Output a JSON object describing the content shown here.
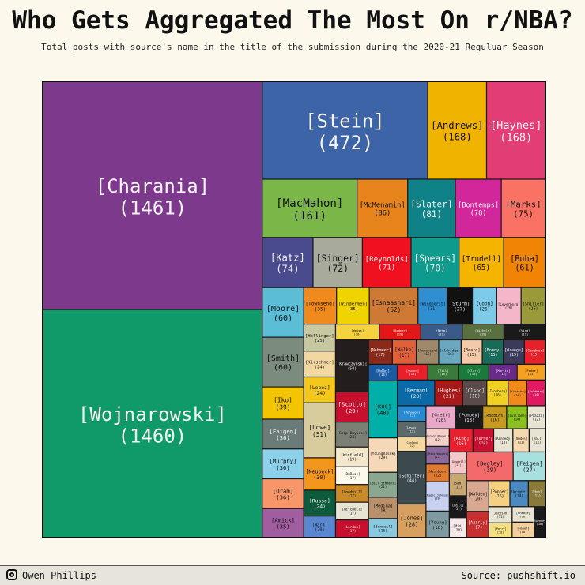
{
  "chart_data": {
    "type": "treemap",
    "title": "Who Gets Aggregated The Most On r/NBA?",
    "subtitle": "Total posts with source's name in the title of the submission during the 2020-21 Reguluar Season",
    "items": [
      {
        "name": "[Charania]",
        "value": 1461,
        "color": "#7d3a8c"
      },
      {
        "name": "[Wojnarowski]",
        "value": 1460,
        "color": "#109a6a"
      },
      {
        "name": "[Stein]",
        "value": 472,
        "color": "#3e64a8"
      },
      {
        "name": "[Andrews]",
        "value": 168,
        "color": "#f0b400"
      },
      {
        "name": "[Haynes]",
        "value": 168,
        "color": "#e23d74"
      },
      {
        "name": "[MacMahon]",
        "value": 161,
        "color": "#7ab648"
      },
      {
        "name": "[McMenamin]",
        "value": 86,
        "color": "#e8841c"
      },
      {
        "name": "[Slater]",
        "value": 81,
        "color": "#0f8288"
      },
      {
        "name": "[Bontemps]",
        "value": 78,
        "color": "#d1279a"
      },
      {
        "name": "[Marks]",
        "value": 75,
        "color": "#fa7264"
      },
      {
        "name": "[Katz]",
        "value": 74,
        "color": "#4a4a8e"
      },
      {
        "name": "[Singer]",
        "value": 72,
        "color": "#a8aa9c"
      },
      {
        "name": "[Reynolds]",
        "value": 71,
        "color": "#f11020"
      },
      {
        "name": "[Spears]",
        "value": 70,
        "color": "#0e9a8c"
      },
      {
        "name": "[Trudell]",
        "value": 65,
        "color": "#f4b400"
      },
      {
        "name": "[Buha]",
        "value": 61,
        "color": "#f18405"
      },
      {
        "name": "[Moore]",
        "value": 60,
        "color": "#5bbdd6"
      },
      {
        "name": "[Smith]",
        "value": 60,
        "color": "#7b8c7e"
      },
      {
        "name": "[Iko]",
        "value": 39,
        "color": "#f3c400"
      },
      {
        "name": "[Faigen]",
        "value": 36,
        "color": "#6b7b78"
      },
      {
        "name": "[Murphy]",
        "value": 36,
        "color": "#8dd0ea"
      },
      {
        "name": "[Oram]",
        "value": 36,
        "color": "#f8966a"
      },
      {
        "name": "[Amick]",
        "value": 35,
        "color": "#a05ea0"
      },
      {
        "name": "[Townsend]",
        "value": 35,
        "color": "#f08a1c"
      },
      {
        "name": "[Windermen]",
        "value": 35,
        "color": "#f0d400"
      },
      {
        "name": "[Esnaashari]",
        "value": 52,
        "color": "#cf7a34"
      },
      {
        "name": "[Windhorst]",
        "value": 31,
        "color": "#2f8fd0"
      },
      {
        "name": "[Sturm]",
        "value": 27,
        "color": "#111111"
      },
      {
        "name": "[Goon]",
        "value": 26,
        "color": "#7dcbe8"
      },
      {
        "name": "[Leverberg]",
        "value": 26,
        "color": "#f4b6c8"
      },
      {
        "name": "[Shiller]",
        "value": 26,
        "color": "#9a9a3a"
      },
      {
        "name": "[Hollinger]",
        "value": 25,
        "color": "#c8c8a0"
      },
      {
        "name": "[Kirschner]",
        "value": 24,
        "color": "#f2d8a0"
      },
      {
        "name": "[Lopez]",
        "value": 24,
        "color": "#f4c81a"
      },
      {
        "name": "[Lowe]",
        "value": 51,
        "color": "#d8cc9c"
      },
      {
        "name": "[Neubeck]",
        "value": 30,
        "color": "#f3961c"
      },
      {
        "name": "[Russo]",
        "value": 24,
        "color": "#0d5a3c"
      },
      {
        "name": "[Ward]",
        "value": 20,
        "color": "#5a88d0"
      },
      {
        "name": "[Weiss]",
        "value": 20,
        "color": "#f4d240"
      },
      {
        "name": "[Bodner]",
        "value": 19,
        "color": "#e01818"
      },
      {
        "name": "[Nehm]",
        "value": 19,
        "color": "#3a5a8a"
      },
      {
        "name": "[Nichols]",
        "value": 19,
        "color": "#5a7040"
      },
      {
        "name": "[Vind]",
        "value": 19,
        "color": "#1a1a1a"
      },
      {
        "name": "[Krawczynski]",
        "value": 50,
        "color": "#231d1e"
      },
      {
        "name": "[Scotto]",
        "value": 29,
        "color": "#c8102e"
      },
      {
        "name": "[Skip Bayless]",
        "value": 24,
        "color": "#7c8074"
      },
      {
        "name": "[Winfield]",
        "value": 19,
        "color": "#f3e8cc"
      },
      {
        "name": "[DuBose]",
        "value": 17,
        "color": "#fdf8ec"
      },
      {
        "name": "[Goodwill]",
        "value": 17,
        "color": "#c88a2a"
      },
      {
        "name": "[Mitchell]",
        "value": 17,
        "color": "#e8e4d4"
      },
      {
        "name": "[Lordan]",
        "value": 17,
        "color": "#c8102e"
      },
      {
        "name": "[Nehmeer]",
        "value": 17,
        "color": "#8a2a1a"
      },
      {
        "name": "[Wolke]",
        "value": 17,
        "color": "#e0603a"
      },
      {
        "name": "[Anderson]",
        "value": 16,
        "color": "#a0886a"
      },
      {
        "name": "[Aldridge]",
        "value": 16,
        "color": "#6aa8c0"
      },
      {
        "name": "[Beard]",
        "value": 15,
        "color": "#f4c8a8"
      },
      {
        "name": "[Bondy]",
        "value": 15,
        "color": "#1a6a5a"
      },
      {
        "name": "[Orange]",
        "value": 15,
        "color": "#3a3a5a"
      },
      {
        "name": "[Gardner]",
        "value": 15,
        "color": "#e8202a"
      },
      {
        "name": "[DuMas]",
        "value": 14,
        "color": "#1a5aa0"
      },
      {
        "name": "[KOC]",
        "value": 48,
        "color": "#00b0a8"
      },
      {
        "name": "[Youngmisuk]",
        "value": 29,
        "color": "#f4d8b8"
      },
      {
        "name": "[Bill Simmons]",
        "value": 21,
        "color": "#8aa890"
      },
      {
        "name": "[Medina]",
        "value": 18,
        "color": "#b8906a"
      },
      {
        "name": "[Bonnell]",
        "value": 16,
        "color": "#8ac8e0"
      },
      {
        "name": "[Quinn]",
        "value": 14,
        "color": "#e8202a"
      },
      {
        "name": "[Zill]",
        "value": 14,
        "color": "#3a7a3a"
      },
      {
        "name": "[Clark]",
        "value": 14,
        "color": "#1a7a3a"
      },
      {
        "name": "[Martin]",
        "value": 13,
        "color": "#6a2a8a"
      },
      {
        "name": "[Fedor]",
        "value": 13,
        "color": "#f4a020"
      },
      {
        "name": "[Berman]",
        "value": 28,
        "color": "#0a6aa8"
      },
      {
        "name": "[Hughes]",
        "value": 21,
        "color": "#a81a1a"
      },
      {
        "name": "[Olson]",
        "value": 18,
        "color": "#5a4a4a"
      },
      {
        "name": "[Ironberg]",
        "value": 16,
        "color": "#f0d020"
      },
      {
        "name": "[Kubatko]",
        "value": 14,
        "color": "#f08a1a"
      },
      {
        "name": "[Goldberg]",
        "value": 14,
        "color": "#e01a60"
      },
      {
        "name": "[Johnson]",
        "value": 13,
        "color": "#2a8ad0"
      },
      {
        "name": "[Lewis]",
        "value": 13,
        "color": "#5a6a6a"
      },
      {
        "name": "[Conlan]",
        "value": 12,
        "color": "#f4d8a0"
      },
      {
        "name": "[Schiffer]",
        "value": 44,
        "color": "#3c4a4e"
      },
      {
        "name": "[Jones]",
        "value": 28,
        "color": "#d8a060"
      },
      {
        "name": "[Greif]",
        "value": 20,
        "color": "#e8a8c8"
      },
      {
        "name": "[Pompey]",
        "value": 18,
        "color": "#1a1a1a"
      },
      {
        "name": "[Robbins]",
        "value": 16,
        "color": "#c89a20"
      },
      {
        "name": "[Quillane]",
        "value": 14,
        "color": "#8ac020"
      },
      {
        "name": "[Piazza]",
        "value": 12,
        "color": "#e8e4d4"
      },
      {
        "name": "[Vernon Maxwell]",
        "value": 12,
        "color": "#f4d0c8"
      },
      {
        "name": "[Mick Wright]",
        "value": 12,
        "color": "#8a6a9a"
      },
      {
        "name": "[Washburn]",
        "value": 12,
        "color": "#e07a30"
      },
      {
        "name": "[Magic Johnson]",
        "value": 20,
        "color": "#c8d0f0"
      },
      {
        "name": "[Young]",
        "value": 18,
        "color": "#7c9aa0"
      },
      {
        "name": "[King]",
        "value": 16,
        "color": "#e82030"
      },
      {
        "name": "[Turner]",
        "value": 14,
        "color": "#c81030"
      },
      {
        "name": "[Kennedy]",
        "value": 13,
        "color": "#e8e4d4"
      },
      {
        "name": "[Nedel]",
        "value": 11,
        "color": "#f4d8b0"
      },
      {
        "name": "[Hall]",
        "value": 11,
        "color": "#e8e4d4"
      },
      {
        "name": "[Grodell]",
        "value": 11,
        "color": "#f4c8c8"
      },
      {
        "name": "[Sam]",
        "value": 11,
        "color": "#c8a870"
      },
      {
        "name": "[Bill]",
        "value": 11,
        "color": "#1a1a1a"
      },
      {
        "name": "[Mid]",
        "value": 10,
        "color": "#f4e8e8"
      },
      {
        "name": "[Begley]",
        "value": 39,
        "color": "#f46a6a"
      },
      {
        "name": "[Feigen]",
        "value": 27,
        "color": "#a8e0e0"
      },
      {
        "name": "[Walden]",
        "value": 20,
        "color": "#d8a890"
      },
      {
        "name": "[Azarly]",
        "value": 17,
        "color": "#c83030"
      },
      {
        "name": "[Popper]",
        "value": 16,
        "color": "#f4d080"
      },
      {
        "name": "[Wright]",
        "value": 14,
        "color": "#4a8ac0"
      },
      {
        "name": "[Hub]",
        "value": 13,
        "color": "#8a7a3a"
      },
      {
        "name": "[Jackson]",
        "value": 11,
        "color": "#e8e4d4"
      },
      {
        "name": "[Parry]",
        "value": 10,
        "color": "#f4e080"
      },
      {
        "name": "[Ghebre]",
        "value": 10,
        "color": "#e8e4d4"
      },
      {
        "name": "[Haber]",
        "value": 10,
        "color": "#f4d0a0"
      },
      {
        "name": "[Sweeney]",
        "value": 10,
        "color": "#1a1a1a"
      }
    ]
  },
  "footer": {
    "author": "Owen Phillips",
    "source": "Source: pushshift.io",
    "icon": "instagram-icon"
  }
}
